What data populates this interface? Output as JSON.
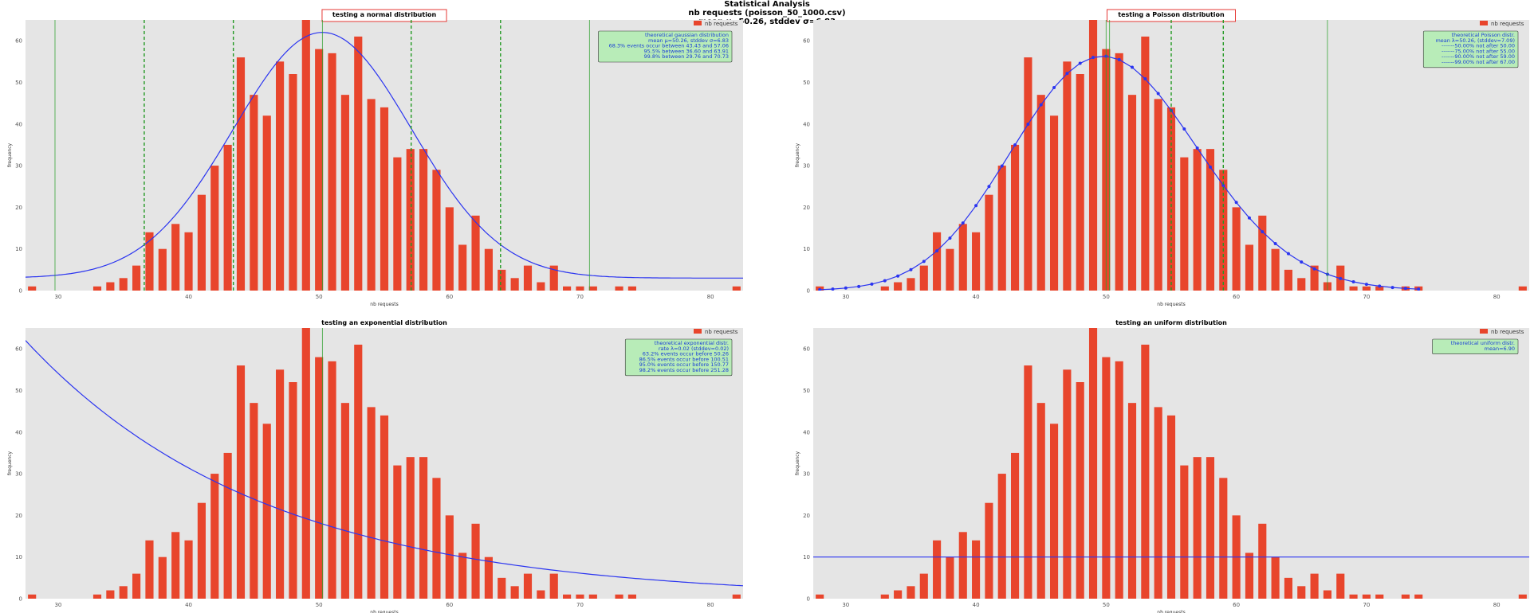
{
  "figure": {
    "suptitle": [
      "Statistical Analysis",
      "nb requests (poisson_50_1000.csv)",
      "mean μ=50.26, stddev σ=6.83"
    ]
  },
  "colors": {
    "bar": "#e8452c",
    "curve": "#2b35f0",
    "vline_solid": "#2ca02c",
    "vline_dash": "#229922",
    "axes_bg": "#e5e5e5",
    "annotation_bg": "#b8ecb8",
    "title_box_border": "#e53935"
  },
  "chart_data": [
    {
      "id": "normal",
      "type": "bar",
      "title": "testing a normal distribution",
      "title_boxed": true,
      "xlabel": "nb requests",
      "ylabel": "frequency",
      "xlim": [
        27.5,
        82.5
      ],
      "ylim": [
        0,
        65
      ],
      "xticks": [
        30,
        40,
        50,
        60,
        70,
        80
      ],
      "yticks": [
        0,
        10,
        20,
        30,
        40,
        50,
        60
      ],
      "legend": {
        "position": "top-right",
        "entries": [
          "nb requests"
        ]
      },
      "series": [
        {
          "name": "nb requests",
          "kind": "bars",
          "x": [
            28,
            33,
            34,
            35,
            36,
            37,
            38,
            39,
            40,
            41,
            42,
            43,
            44,
            45,
            46,
            47,
            48,
            49,
            50,
            51,
            52,
            53,
            54,
            55,
            56,
            57,
            58,
            59,
            60,
            61,
            62,
            63,
            64,
            65,
            66,
            67,
            68,
            69,
            70,
            71,
            72,
            73,
            74,
            82
          ],
          "y": [
            1,
            1,
            2,
            3,
            6,
            14,
            10,
            16,
            14,
            23,
            30,
            35,
            56,
            47,
            42,
            55,
            52,
            65,
            58,
            57,
            47,
            61,
            46,
            44,
            32,
            34,
            34,
            29,
            20,
            11,
            18,
            10,
            5,
            3,
            6,
            2,
            6,
            1,
            1,
            1,
            0,
            1,
            1,
            1
          ]
        },
        {
          "kind": "gaussian",
          "mu": 50.26,
          "sigma": 6.83,
          "peak": 62,
          "base": 3
        },
        {
          "kind": "vlines_solid",
          "x": [
            29.76,
            50.26,
            70.73
          ]
        },
        {
          "kind": "vlines_dash",
          "x": [
            36.6,
            43.43,
            57.06,
            63.91
          ]
        }
      ],
      "annotation": {
        "position": "top-right",
        "lines": [
          "theoretical gaussian distribution",
          "mean μ=50.26, stddev σ=6.83",
          "68.3% events occur between 43.43 and 57.06",
          "95.5% between 36.60 and 63.91",
          "99.8% between 29.76 and 70.73"
        ]
      }
    },
    {
      "id": "poisson",
      "type": "bar",
      "title": "testing a Poisson distribution",
      "title_boxed": true,
      "xlabel": "nb requests",
      "ylabel": "frequency",
      "xlim": [
        27.5,
        82.5
      ],
      "ylim": [
        0,
        65
      ],
      "xticks": [
        30,
        40,
        50,
        60,
        70,
        80
      ],
      "yticks": [
        0,
        10,
        20,
        30,
        40,
        50,
        60
      ],
      "legend": {
        "position": "top-right",
        "entries": [
          "nb requests"
        ]
      },
      "series": [
        {
          "name": "nb requests",
          "kind": "bars",
          "x": [
            28,
            33,
            34,
            35,
            36,
            37,
            38,
            39,
            40,
            41,
            42,
            43,
            44,
            45,
            46,
            47,
            48,
            49,
            50,
            51,
            52,
            53,
            54,
            55,
            56,
            57,
            58,
            59,
            60,
            61,
            62,
            63,
            64,
            65,
            66,
            67,
            68,
            69,
            70,
            71,
            72,
            73,
            74,
            82
          ],
          "y": [
            1,
            1,
            2,
            3,
            6,
            14,
            10,
            16,
            14,
            23,
            30,
            35,
            56,
            47,
            42,
            55,
            52,
            65,
            58,
            57,
            47,
            61,
            46,
            44,
            32,
            34,
            34,
            29,
            20,
            11,
            18,
            10,
            5,
            3,
            6,
            2,
            6,
            1,
            1,
            1,
            0,
            1,
            1,
            1
          ]
        },
        {
          "kind": "poisson",
          "lambda": 50.26,
          "n": 1000,
          "from": 28,
          "to": 74
        },
        {
          "kind": "vlines_solid",
          "x": [
            50.0,
            50.26,
            67.0
          ]
        },
        {
          "kind": "vlines_dash",
          "x": [
            55.0,
            59.0
          ]
        }
      ],
      "annotation": {
        "position": "top-right",
        "lines": [
          "theoretical Poisson distr.",
          "mean λ=50.26, (stddev=7.09)",
          "-------50.00% not after 50.00",
          "-------75.00% not after 55.00",
          "-------90.00% not after 59.00",
          "-------99.00% not after 67.00"
        ]
      }
    },
    {
      "id": "exponential",
      "type": "bar",
      "title": "testing an exponential distribution",
      "title_boxed": false,
      "xlabel": "nb requests",
      "ylabel": "frequency",
      "xlim": [
        27.5,
        82.5
      ],
      "ylim": [
        0,
        65
      ],
      "xticks": [
        30,
        40,
        50,
        60,
        70,
        80
      ],
      "yticks": [
        0,
        10,
        20,
        30,
        40,
        50,
        60
      ],
      "legend": {
        "position": "top-right",
        "entries": [
          "nb requests"
        ]
      },
      "series": [
        {
          "name": "nb requests",
          "kind": "bars",
          "x": [
            28,
            33,
            34,
            35,
            36,
            37,
            38,
            39,
            40,
            41,
            42,
            43,
            44,
            45,
            46,
            47,
            48,
            49,
            50,
            51,
            52,
            53,
            54,
            55,
            56,
            57,
            58,
            59,
            60,
            61,
            62,
            63,
            64,
            65,
            66,
            67,
            68,
            69,
            70,
            71,
            72,
            73,
            74,
            82
          ],
          "y": [
            1,
            1,
            2,
            3,
            6,
            14,
            10,
            16,
            14,
            23,
            30,
            35,
            56,
            47,
            42,
            55,
            52,
            65,
            58,
            57,
            47,
            61,
            46,
            44,
            32,
            34,
            34,
            29,
            20,
            11,
            18,
            10,
            5,
            3,
            6,
            2,
            6,
            1,
            1,
            1,
            0,
            1,
            1,
            1
          ]
        },
        {
          "kind": "expcurve",
          "x": [
            27.5,
            82.5
          ],
          "y0": 62,
          "rate": 0.05445
        },
        {
          "kind": "vlines_solid",
          "x": [
            50.26
          ]
        }
      ],
      "annotation": {
        "position": "top-right",
        "lines": [
          "theoretical  exponential distr.",
          "rate λ=0.02 (stddev=0.02)",
          "63.2% events occur before 50.26",
          "86.5%  events occur before 100.51",
          "95.0% events occur before 150.77",
          "98.2% events occur before 251.28"
        ]
      }
    },
    {
      "id": "uniform",
      "type": "bar",
      "title": "testing an uniform distribution",
      "title_boxed": false,
      "xlabel": "nb requests",
      "ylabel": "frequency",
      "xlim": [
        27.5,
        82.5
      ],
      "ylim": [
        0,
        65
      ],
      "xticks": [
        30,
        40,
        50,
        60,
        70,
        80
      ],
      "yticks": [
        0,
        10,
        20,
        30,
        40,
        50,
        60
      ],
      "legend": {
        "position": "top-right",
        "entries": [
          "nb requests"
        ]
      },
      "series": [
        {
          "name": "nb requests",
          "kind": "bars",
          "x": [
            28,
            33,
            34,
            35,
            36,
            37,
            38,
            39,
            40,
            41,
            42,
            43,
            44,
            45,
            46,
            47,
            48,
            49,
            50,
            51,
            52,
            53,
            54,
            55,
            56,
            57,
            58,
            59,
            60,
            61,
            62,
            63,
            64,
            65,
            66,
            67,
            68,
            69,
            70,
            71,
            72,
            73,
            74,
            82
          ],
          "y": [
            1,
            1,
            2,
            3,
            6,
            14,
            10,
            16,
            14,
            23,
            30,
            35,
            56,
            47,
            42,
            55,
            52,
            65,
            58,
            57,
            47,
            61,
            46,
            44,
            32,
            34,
            34,
            29,
            20,
            11,
            18,
            10,
            5,
            3,
            6,
            2,
            6,
            1,
            1,
            1,
            0,
            1,
            1,
            1
          ]
        },
        {
          "kind": "hline",
          "y": 10
        }
      ],
      "annotation": {
        "position": "top-right",
        "lines": [
          "theoretical uniform distr.",
          "mean=6.90"
        ]
      }
    }
  ]
}
